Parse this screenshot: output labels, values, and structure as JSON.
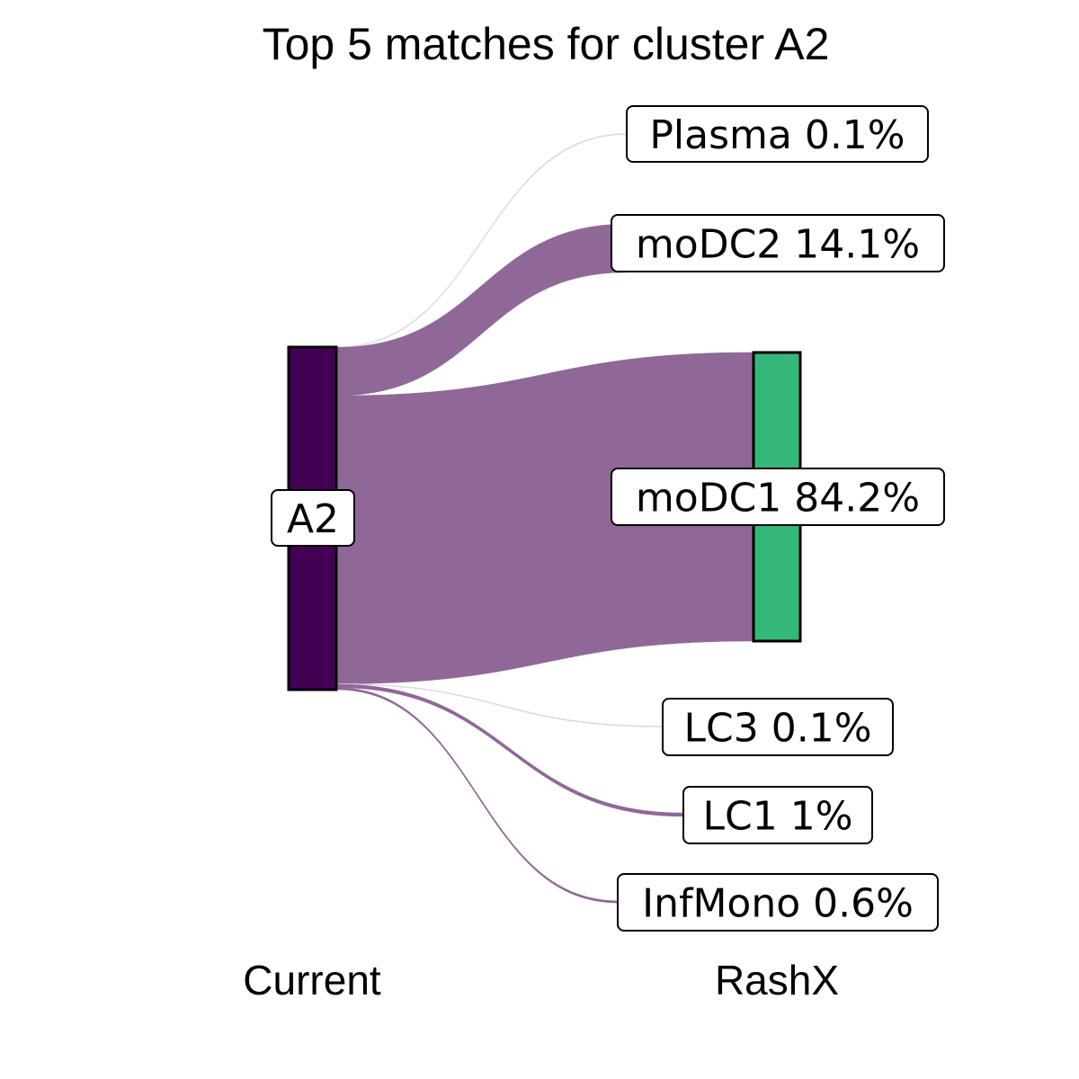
{
  "title": "Top 5 matches for cluster A2",
  "columns": {
    "left": "Current",
    "right": "RashX"
  },
  "colors": {
    "source_node": "#440154",
    "target_node": "#35B779",
    "flow": "#8F6898",
    "flow_faint": "#d9d9d9"
  },
  "source": {
    "name": "A2",
    "label": "A2"
  },
  "chart_data": {
    "type": "sankey",
    "source": "A2",
    "targets": [
      {
        "name": "Plasma",
        "percent": 0.1,
        "label": "Plasma 0.1%"
      },
      {
        "name": "moDC2",
        "percent": 14.1,
        "label": "moDC2 14.1%"
      },
      {
        "name": "moDC1",
        "percent": 84.2,
        "label": "moDC1 84.2%"
      },
      {
        "name": "LC3",
        "percent": 0.1,
        "label": "LC3 0.1%"
      },
      {
        "name": "LC1",
        "percent": 1,
        "label": "LC1 1%"
      },
      {
        "name": "InfMono",
        "percent": 0.6,
        "label": "InfMono 0.6%"
      }
    ]
  }
}
